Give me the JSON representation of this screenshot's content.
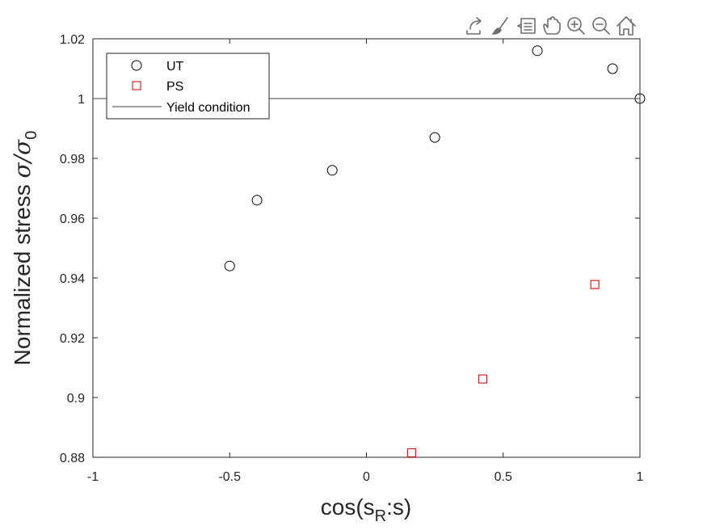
{
  "toolbar": {
    "icons": [
      "export-icon",
      "brush-icon",
      "datatip-icon",
      "pan-icon",
      "zoom-in-icon",
      "zoom-out-icon",
      "home-icon"
    ]
  },
  "colors": {
    "ut": "#000000",
    "ps": "#c00000",
    "yield_line": "#404040",
    "axis": "#262626"
  },
  "chart_data": {
    "type": "scatter",
    "xlabel_main": "cos(s",
    "xlabel_sub": "R",
    "xlabel_tail": ":s)",
    "ylabel_main": "Normalized stress ",
    "ylabel_sym": "σ/σ",
    "ylabel_sub": "0",
    "xlim": [
      -1,
      1
    ],
    "ylim": [
      0.88,
      1.02
    ],
    "x_ticks": [
      -1,
      -0.5,
      0,
      0.5,
      1
    ],
    "x_tick_labels": [
      "-1",
      "-0.5",
      "0",
      "0.5",
      "1"
    ],
    "y_ticks": [
      0.88,
      0.9,
      0.92,
      0.94,
      0.96,
      0.98,
      1,
      1.02
    ],
    "y_tick_labels": [
      "0.88",
      "0.9",
      "0.92",
      "0.94",
      "0.96",
      "0.98",
      "1",
      "1.02"
    ],
    "grid": false,
    "legend_position": "top-left",
    "series": [
      {
        "name": "UT",
        "marker": "circle",
        "x": [
          -0.5,
          -0.4,
          -0.125,
          0.25,
          0.625,
          0.9,
          1.0
        ],
        "y": [
          0.944,
          0.966,
          0.976,
          0.987,
          1.016,
          1.01,
          1.0
        ]
      },
      {
        "name": "PS",
        "marker": "square",
        "x": [
          0.165,
          0.425,
          0.835
        ],
        "y": [
          0.8815,
          0.9062,
          0.9378
        ]
      },
      {
        "name": "Yield condition",
        "marker": "line",
        "x": [
          -1,
          1
        ],
        "y": [
          1,
          1
        ]
      }
    ]
  }
}
